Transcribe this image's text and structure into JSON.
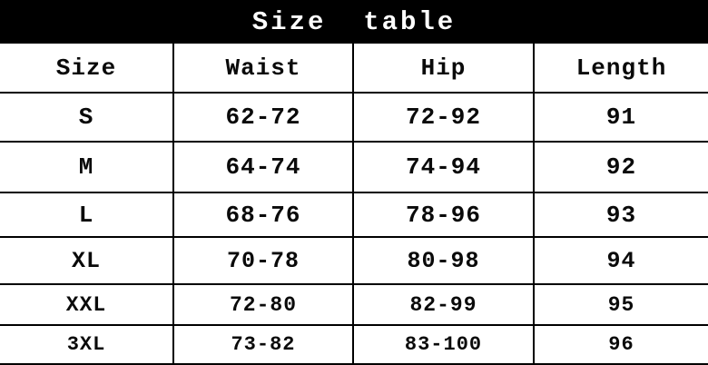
{
  "title_bar": {
    "title": "Size  table",
    "background_color": "#000000",
    "text_color": "#ffffff"
  },
  "table": {
    "columns": [
      "Size",
      "Waist",
      "Hip",
      "Length"
    ],
    "rows": [
      [
        "S",
        "62-72",
        "72-92",
        "91"
      ],
      [
        "M",
        "64-74",
        "74-94",
        "92"
      ],
      [
        "L",
        "68-76",
        "78-96",
        "93"
      ],
      [
        "XL",
        "70-78",
        "80-98",
        "94"
      ],
      [
        "XXL",
        "72-80",
        "82-99",
        "95"
      ],
      [
        "3XL",
        "73-82",
        "83-100",
        "96"
      ]
    ]
  }
}
